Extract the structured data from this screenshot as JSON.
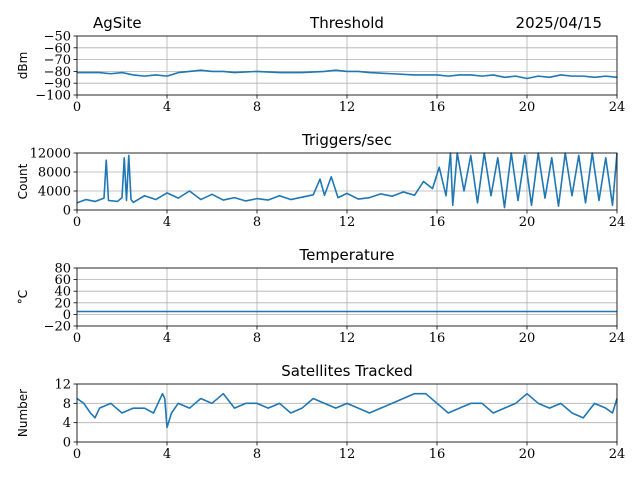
{
  "header": {
    "site": "AgSite",
    "date": "2025/04/15"
  },
  "colors": {
    "line": "#1f77b4",
    "grid": "#b0b0b0",
    "axis": "#000000"
  },
  "chart_data": [
    {
      "type": "line",
      "title": "Threshold",
      "ylabel": "dBm",
      "xlim": [
        0,
        24
      ],
      "ylim": [
        -100,
        -50
      ],
      "xticks": [
        0,
        4,
        8,
        12,
        16,
        20,
        24
      ],
      "yticks": [
        -50,
        -60,
        -70,
        -80,
        -90,
        -100
      ],
      "ytick_labels": [
        "−50",
        "−60",
        "−70",
        "−80",
        "−90",
        "−100"
      ],
      "grid": true,
      "series": [
        {
          "x": [
            0,
            1,
            1.5,
            2,
            2.5,
            3,
            3.5,
            4,
            4.5,
            5,
            5.5,
            6,
            6.5,
            7,
            8,
            9,
            10,
            11,
            11.5,
            12,
            12.5,
            13,
            14,
            15,
            16,
            16.5,
            17,
            17.5,
            18,
            18.5,
            19,
            19.5,
            20,
            20.5,
            21,
            21.5,
            22,
            22.5,
            23,
            23.5,
            24
          ],
          "y": [
            -81,
            -81,
            -82,
            -81,
            -83,
            -84,
            -83,
            -84,
            -81,
            -80,
            -79,
            -80,
            -80,
            -81,
            -80,
            -81,
            -81,
            -80,
            -79,
            -80,
            -80,
            -81,
            -82,
            -83,
            -83,
            -84,
            -83,
            -83,
            -84,
            -83,
            -85,
            -84,
            -86,
            -84,
            -85,
            -83,
            -84,
            -84,
            -85,
            -84,
            -85
          ]
        }
      ]
    },
    {
      "type": "line",
      "title": "Triggers/sec",
      "ylabel": "Count",
      "xlim": [
        0,
        24
      ],
      "ylim": [
        0,
        12000
      ],
      "xticks": [
        0,
        4,
        8,
        12,
        16,
        20,
        24
      ],
      "yticks": [
        0,
        4000,
        8000,
        12000
      ],
      "ytick_labels": [
        "0",
        "4000",
        "8000",
        "12000"
      ],
      "grid": true,
      "series": [
        {
          "x": [
            0,
            0.4,
            0.8,
            1.2,
            1.3,
            1.4,
            1.8,
            2.0,
            2.1,
            2.2,
            2.3,
            2.4,
            2.5,
            3.0,
            3.5,
            4.0,
            4.5,
            5.0,
            5.5,
            6.0,
            6.5,
            7.0,
            7.5,
            8.0,
            8.5,
            9.0,
            9.5,
            10.0,
            10.5,
            10.8,
            11.0,
            11.3,
            11.6,
            12.0,
            12.5,
            13.0,
            13.5,
            14.0,
            14.5,
            15.0,
            15.4,
            15.8,
            16.1,
            16.4,
            16.6,
            16.7,
            16.9,
            17.2,
            17.5,
            17.8,
            18.1,
            18.4,
            18.7,
            19.0,
            19.3,
            19.6,
            19.9,
            20.2,
            20.5,
            20.8,
            21.1,
            21.4,
            21.7,
            22.0,
            22.3,
            22.6,
            22.9,
            23.2,
            23.5,
            23.8,
            24.0
          ],
          "y": [
            1500,
            2200,
            1800,
            2500,
            10500,
            2000,
            1800,
            2600,
            11000,
            2000,
            11500,
            2200,
            1600,
            3000,
            2200,
            3600,
            2500,
            4000,
            2200,
            3300,
            2100,
            2600,
            1900,
            2400,
            2100,
            3000,
            2200,
            2700,
            3200,
            6500,
            3100,
            7000,
            2600,
            3500,
            2300,
            2600,
            3400,
            2900,
            3800,
            3100,
            6000,
            4500,
            9000,
            3000,
            12000,
            1000,
            12000,
            4000,
            11500,
            1500,
            12000,
            3000,
            11000,
            500,
            12000,
            2000,
            11500,
            1000,
            12000,
            2500,
            11000,
            800,
            12000,
            3000,
            11500,
            1500,
            12000,
            2000,
            11000,
            1000,
            12000
          ]
        }
      ]
    },
    {
      "type": "line",
      "title": "Temperature",
      "ylabel": "°C",
      "xlim": [
        0,
        24
      ],
      "ylim": [
        -20,
        80
      ],
      "xticks": [
        0,
        4,
        8,
        12,
        16,
        20,
        24
      ],
      "yticks": [
        -20,
        0,
        20,
        40,
        60,
        80
      ],
      "ytick_labels": [
        "−20",
        "0",
        "20",
        "40",
        "60",
        "80"
      ],
      "grid": true,
      "series": [
        {
          "x": [
            0,
            24
          ],
          "y": [
            5,
            5
          ]
        }
      ]
    },
    {
      "type": "line",
      "title": "Satellites Tracked",
      "ylabel": "Number",
      "xlim": [
        0,
        24
      ],
      "ylim": [
        0,
        12
      ],
      "xticks": [
        0,
        4,
        8,
        12,
        16,
        20,
        24
      ],
      "yticks": [
        0,
        4,
        8,
        12
      ],
      "ytick_labels": [
        "0",
        "4",
        "8",
        "12"
      ],
      "grid": true,
      "series": [
        {
          "x": [
            0,
            0.3,
            0.6,
            0.8,
            1.0,
            1.5,
            2.0,
            2.5,
            3.0,
            3.4,
            3.6,
            3.8,
            3.9,
            4.0,
            4.2,
            4.5,
            5.0,
            5.5,
            6.0,
            6.5,
            7.0,
            7.5,
            8.0,
            8.5,
            9.0,
            9.5,
            10.0,
            10.5,
            11.0,
            11.5,
            12.0,
            12.5,
            13.0,
            13.5,
            14.0,
            14.5,
            15.0,
            15.5,
            16.0,
            16.5,
            17.0,
            17.5,
            18.0,
            18.5,
            19.0,
            19.5,
            20.0,
            20.5,
            21.0,
            21.5,
            22.0,
            22.5,
            23.0,
            23.5,
            23.8,
            24.0
          ],
          "y": [
            9,
            8,
            6,
            5,
            7,
            8,
            6,
            7,
            7,
            6,
            8,
            10,
            9,
            3,
            6,
            8,
            7,
            9,
            8,
            10,
            7,
            8,
            8,
            7,
            8,
            6,
            7,
            9,
            8,
            7,
            8,
            7,
            6,
            7,
            8,
            9,
            10,
            10,
            8,
            6,
            7,
            8,
            8,
            6,
            7,
            8,
            10,
            8,
            7,
            8,
            6,
            5,
            8,
            7,
            6,
            9
          ]
        }
      ]
    }
  ]
}
